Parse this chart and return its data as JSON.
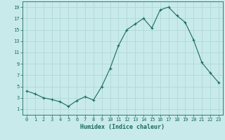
{
  "x": [
    0,
    1,
    2,
    3,
    4,
    5,
    6,
    7,
    8,
    9,
    10,
    11,
    12,
    13,
    14,
    15,
    16,
    17,
    18,
    19,
    20,
    21,
    22,
    23
  ],
  "y": [
    4.2,
    3.7,
    3.0,
    2.7,
    2.3,
    1.5,
    2.5,
    3.2,
    2.6,
    5.0,
    8.2,
    12.2,
    15.0,
    16.0,
    17.0,
    15.3,
    18.5,
    19.0,
    17.5,
    16.3,
    13.2,
    9.2,
    7.4,
    5.7
  ],
  "xlabel": "Humidex (Indice chaleur)",
  "bg_color": "#c8eaea",
  "line_color": "#1a6b5a",
  "grid_color": "#b0d8d8",
  "ylim": [
    0,
    20
  ],
  "xlim": [
    -0.5,
    23.5
  ],
  "yticks": [
    1,
    3,
    5,
    7,
    9,
    11,
    13,
    15,
    17,
    19
  ],
  "xticks": [
    0,
    1,
    2,
    3,
    4,
    5,
    6,
    7,
    8,
    9,
    10,
    11,
    12,
    13,
    14,
    15,
    16,
    17,
    18,
    19,
    20,
    21,
    22,
    23
  ]
}
